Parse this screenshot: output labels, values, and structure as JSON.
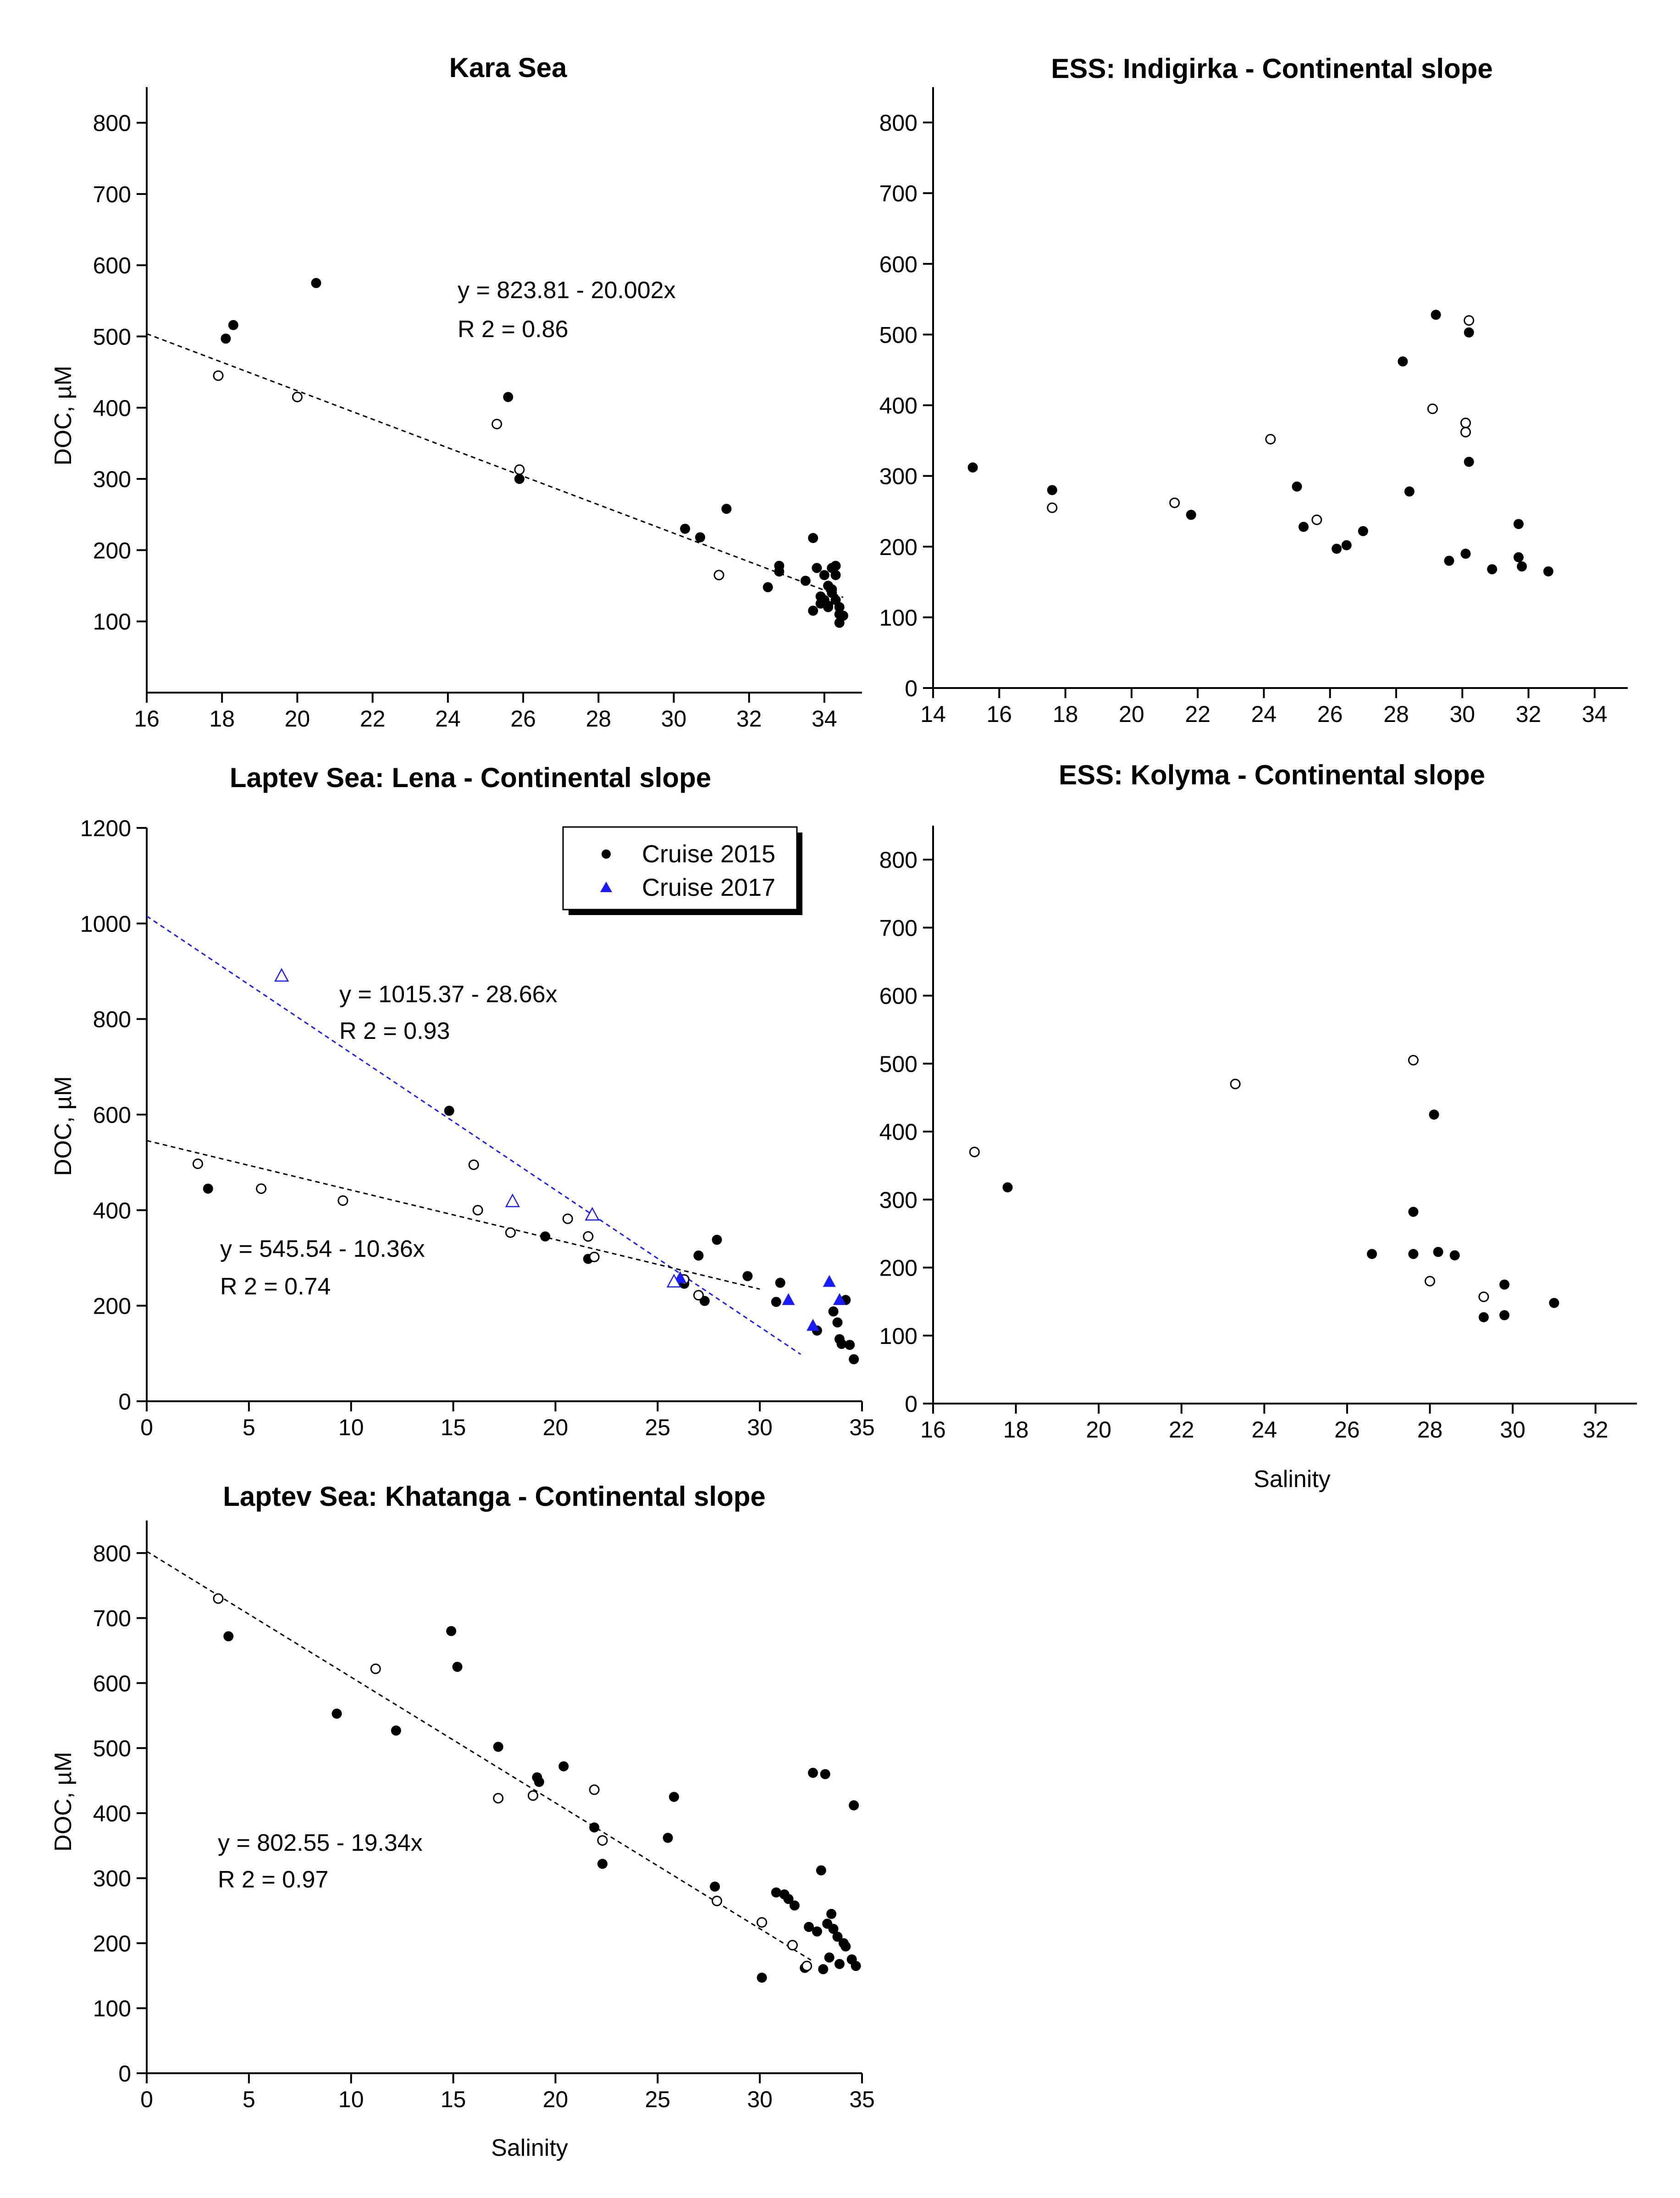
{
  "figure": {
    "background": "#ffffff",
    "ink": "#000000",
    "blue": "#1a1aff"
  },
  "chart_data": [
    {
      "id": "kara",
      "type": "scatter",
      "title": "Kara Sea",
      "xlabel": "",
      "ylabel": "DOC, µM",
      "xlim": [
        16,
        35
      ],
      "ylim": [
        0,
        850
      ],
      "xticks": [
        16,
        18,
        20,
        22,
        24,
        26,
        28,
        30,
        32,
        34
      ],
      "yticks": [
        100,
        200,
        300,
        400,
        500,
        600,
        700,
        800
      ],
      "series": [
        {
          "name": "Cruise 2015 (filled)",
          "marker": "circle-filled",
          "color": "#000000",
          "x": [
            18.1,
            18.3,
            20.5,
            25.6,
            25.9,
            30.3,
            30.7,
            31.4,
            32.5,
            32.8,
            32.8,
            33.5,
            33.7,
            33.7,
            33.8,
            33.9,
            34.0,
            34.0,
            34.1,
            34.1,
            34.2,
            34.2,
            34.3,
            34.3,
            34.3,
            34.4,
            34.4,
            34.4,
            34.5,
            34.2,
            34.1,
            33.9
          ],
          "y": [
            497,
            516,
            575,
            415,
            300,
            230,
            218,
            258,
            148,
            178,
            170,
            157,
            217,
            115,
            175,
            125,
            165,
            130,
            150,
            120,
            140,
            175,
            130,
            165,
            178,
            120,
            110,
            98,
            108,
            145,
            122,
            135
          ]
        },
        {
          "name": "open circles",
          "marker": "circle-open",
          "color": "#000000",
          "x": [
            17.9,
            20.0,
            25.3,
            25.9,
            31.2
          ],
          "y": [
            445,
            415,
            377,
            313,
            165
          ]
        }
      ],
      "fits": [
        {
          "equation": "y = 823.81 - 20.002x",
          "r2": "R 2 = 0.86",
          "intercept": 823.81,
          "slope": -20.002,
          "x_range": [
            16,
            34.5
          ],
          "color": "#000000"
        }
      ]
    },
    {
      "id": "indigirka",
      "type": "scatter",
      "title": "ESS: Indigirka - Continental slope",
      "xlabel": "",
      "ylabel": "",
      "xlim": [
        14,
        35
      ],
      "ylim": [
        0,
        850
      ],
      "xticks": [
        14,
        16,
        18,
        20,
        22,
        24,
        26,
        28,
        30,
        32,
        34
      ],
      "yticks": [
        0,
        100,
        200,
        300,
        400,
        500,
        600,
        700,
        800
      ],
      "series": [
        {
          "name": "filled",
          "marker": "circle-filled",
          "color": "#000000",
          "x": [
            15.2,
            17.6,
            21.8,
            25.0,
            25.2,
            26.2,
            26.5,
            27.0,
            28.2,
            28.4,
            29.2,
            29.6,
            30.1,
            30.2,
            30.2,
            30.9,
            31.7,
            31.7,
            31.8,
            32.6
          ],
          "y": [
            312,
            280,
            245,
            285,
            228,
            197,
            202,
            222,
            462,
            278,
            528,
            180,
            190,
            503,
            320,
            168,
            185,
            232,
            172,
            165
          ]
        },
        {
          "name": "open",
          "marker": "circle-open",
          "color": "#000000",
          "x": [
            17.6,
            21.3,
            24.2,
            25.6,
            29.1,
            30.1,
            30.1,
            30.2
          ],
          "y": [
            255,
            262,
            352,
            238,
            395,
            375,
            362,
            520
          ]
        }
      ],
      "fits": []
    },
    {
      "id": "lena",
      "type": "scatter",
      "title": "Laptev Sea: Lena - Continental slope",
      "xlabel": "",
      "ylabel": "DOC, µM",
      "xlim": [
        0,
        35
      ],
      "ylim": [
        0,
        1200
      ],
      "xticks": [
        0,
        5,
        10,
        15,
        20,
        25,
        30,
        35
      ],
      "yticks": [
        0,
        200,
        400,
        600,
        800,
        1000,
        1200
      ],
      "legend": {
        "position": "top-right",
        "entries": [
          "Cruise 2015",
          "Cruise 2017"
        ]
      },
      "series": [
        {
          "name": "Cruise 2015",
          "marker": "circle-filled",
          "color": "#000000",
          "x": [
            3.0,
            14.8,
            19.5,
            21.6,
            26.3,
            27.0,
            27.3,
            27.9,
            29.4,
            31.0,
            30.8,
            32.8,
            33.6,
            33.8,
            33.9,
            34.0,
            34.2,
            34.4,
            34.6
          ],
          "y": [
            445,
            608,
            345,
            298,
            246,
            305,
            210,
            338,
            262,
            248,
            208,
            148,
            188,
            165,
            130,
            120,
            212,
            118,
            88
          ]
        },
        {
          "name": "open circles",
          "marker": "circle-open",
          "color": "#000000",
          "x": [
            2.5,
            5.6,
            9.6,
            16.0,
            16.2,
            17.8,
            20.6,
            21.6,
            21.9,
            26.3,
            27.0
          ],
          "y": [
            497,
            445,
            420,
            495,
            400,
            353,
            382,
            345,
            302,
            255,
            222
          ]
        },
        {
          "name": "Cruise 2017",
          "marker": "triangle-filled",
          "color": "#1a1aff",
          "x": [
            26.1,
            31.4,
            32.6,
            33.4,
            33.9
          ],
          "y": [
            258,
            212,
            158,
            250,
            212
          ]
        },
        {
          "name": "open triangles",
          "marker": "triangle-open",
          "color": "#1a1aff",
          "x": [
            6.6,
            17.9,
            21.8,
            25.8
          ],
          "y": [
            890,
            418,
            390,
            250
          ]
        }
      ],
      "fits": [
        {
          "equation": "y = 1015.37 - 28.66x",
          "r2": "R 2 = 0.93",
          "intercept": 1015.37,
          "slope": -28.66,
          "x_range": [
            0,
            32
          ],
          "color": "#1a1aff"
        },
        {
          "equation": "y = 545.54 - 10.36x",
          "r2": "R 2 = 0.74",
          "intercept": 545.54,
          "slope": -10.36,
          "x_range": [
            0,
            30
          ],
          "color": "#000000"
        }
      ]
    },
    {
      "id": "kolyma",
      "type": "scatter",
      "title": "ESS: Kolyma - Continental slope",
      "xlabel": "Salinity",
      "ylabel": "",
      "xlim": [
        16,
        33
      ],
      "ylim": [
        0,
        850
      ],
      "xticks": [
        16,
        18,
        20,
        22,
        24,
        26,
        28,
        30,
        32
      ],
      "yticks": [
        0,
        100,
        200,
        300,
        400,
        500,
        600,
        700,
        800
      ],
      "series": [
        {
          "name": "filled",
          "marker": "circle-filled",
          "color": "#000000",
          "x": [
            17.8,
            26.6,
            27.6,
            27.6,
            28.1,
            28.2,
            28.6,
            29.3,
            29.8,
            29.8,
            31.0
          ],
          "y": [
            318,
            220,
            282,
            220,
            425,
            223,
            218,
            127,
            130,
            175,
            148
          ]
        },
        {
          "name": "open",
          "marker": "circle-open",
          "color": "#000000",
          "x": [
            17.0,
            23.3,
            27.6,
            28.0,
            29.3
          ],
          "y": [
            370,
            470,
            505,
            180,
            157
          ]
        }
      ],
      "fits": []
    },
    {
      "id": "khatanga",
      "type": "scatter",
      "title": "Laptev Sea: Khatanga - Continental slope",
      "xlabel": "Salinity",
      "ylabel": "DOC, µM",
      "xlim": [
        0,
        35
      ],
      "ylim": [
        0,
        850
      ],
      "xticks": [
        0,
        5,
        10,
        15,
        20,
        25,
        30,
        35
      ],
      "yticks": [
        0,
        100,
        200,
        300,
        400,
        500,
        600,
        700,
        800
      ],
      "series": [
        {
          "name": "filled",
          "marker": "circle-filled",
          "color": "#000000",
          "x": [
            4.0,
            9.3,
            12.2,
            14.9,
            15.2,
            17.2,
            19.1,
            19.2,
            20.4,
            21.9,
            22.3,
            25.5,
            25.8,
            27.8,
            30.1,
            30.8,
            31.2,
            31.4,
            31.7,
            32.2,
            32.4,
            32.6,
            32.8,
            33.0,
            33.1,
            33.2,
            33.3,
            33.4,
            33.5,
            33.6,
            33.8,
            33.9,
            34.1,
            34.2,
            34.5,
            34.6,
            34.7
          ],
          "y": [
            672,
            553,
            527,
            680,
            625,
            502,
            455,
            448,
            472,
            378,
            322,
            362,
            425,
            287,
            147,
            278,
            275,
            268,
            258,
            162,
            225,
            462,
            218,
            312,
            160,
            460,
            230,
            178,
            245,
            222,
            210,
            168,
            200,
            195,
            175,
            412,
            165
          ]
        },
        {
          "name": "open",
          "marker": "circle-open",
          "color": "#000000",
          "x": [
            3.5,
            11.2,
            17.2,
            18.9,
            21.9,
            22.3,
            27.9,
            30.1,
            31.6,
            32.3
          ],
          "y": [
            730,
            622,
            423,
            427,
            436,
            358,
            265,
            232,
            197,
            165
          ]
        }
      ],
      "fits": [
        {
          "equation": "y = 802.55 - 19.34x",
          "r2": "R 2 = 0.97",
          "intercept": 802.55,
          "slope": -19.34,
          "x_range": [
            0,
            32.5
          ],
          "color": "#000000"
        }
      ]
    }
  ]
}
